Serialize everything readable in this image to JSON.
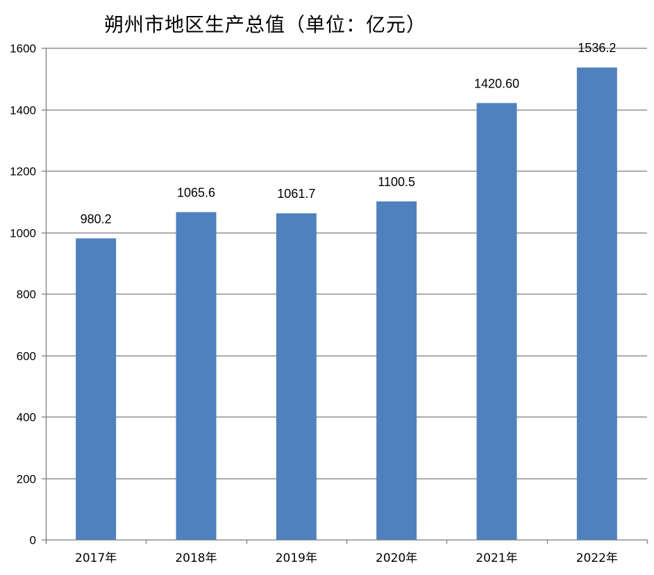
{
  "chart_data": {
    "type": "bar",
    "title": "朔州市地区生产总值（单位：亿元）",
    "categories": [
      "2017年",
      "2018年",
      "2019年",
      "2020年",
      "2021年",
      "2022年"
    ],
    "values": [
      980.2,
      1065.6,
      1061.7,
      1100.5,
      1420.6,
      1536.2
    ],
    "data_labels": [
      "980.2",
      "1065.6",
      "1061.7",
      "1100.5",
      "1420.60",
      "1536.2"
    ],
    "ylim": [
      0,
      1600
    ],
    "yticks": [
      0,
      200,
      400,
      600,
      800,
      1000,
      1200,
      1400,
      1600
    ],
    "grid": true,
    "legend": "none",
    "bar_color": "#4F81BD",
    "grid_color": "#8C8C8C"
  }
}
